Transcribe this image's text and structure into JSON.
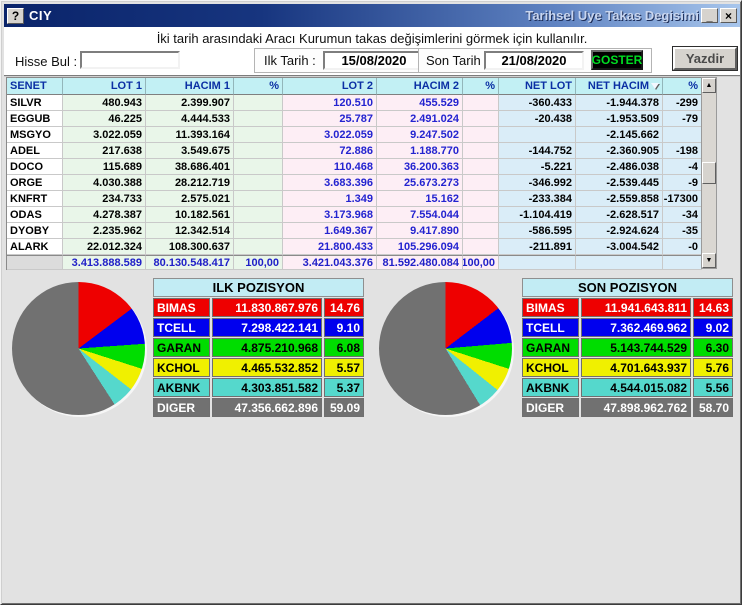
{
  "window": {
    "help_icon": "?",
    "title_left": "CIY",
    "title_right": "Tarihsel Uye Takas Degisimi",
    "minimize_icon": "_",
    "close_icon": "×"
  },
  "subtitle": "İki tarih arasındaki  Aracı Kurumun takas değişimlerini görmek için kullanılır.",
  "controls": {
    "hisse_bul_label": "Hisse Bul :",
    "hisse_bul_value": "",
    "ilk_tarih_label": "Ilk Tarih :",
    "ilk_tarih_value": "15/08/2020",
    "son_tarih_label": "Son Tarih :",
    "son_tarih_value": "21/08/2020",
    "goster_label": "GOSTER",
    "yazdir_label": "Yazdir"
  },
  "scrollbar": {
    "up_icon": "▲",
    "down_icon": "▼"
  },
  "table": {
    "headers": [
      "SENET",
      "LOT 1",
      "HACIM 1",
      "%",
      "LOT 2",
      "HACIM 2",
      "%",
      "NET LOT",
      "NET HACIM",
      "%"
    ],
    "rows": [
      [
        "SILVR",
        "480.943",
        "2.399.907",
        "",
        "120.510",
        "455.529",
        "",
        "-360.433",
        "-1.944.378",
        "-299"
      ],
      [
        "EGGUB",
        "46.225",
        "4.444.533",
        "",
        "25.787",
        "2.491.024",
        "",
        "-20.438",
        "-1.953.509",
        "-79"
      ],
      [
        "MSGYO",
        "3.022.059",
        "11.393.164",
        "",
        "3.022.059",
        "9.247.502",
        "",
        "",
        "-2.145.662",
        ""
      ],
      [
        "ADEL",
        "217.638",
        "3.549.675",
        "",
        "72.886",
        "1.188.770",
        "",
        "-144.752",
        "-2.360.905",
        "-198"
      ],
      [
        "DOCO",
        "115.689",
        "38.686.401",
        "",
        "110.468",
        "36.200.363",
        "",
        "-5.221",
        "-2.486.038",
        "-4"
      ],
      [
        "ORGE",
        "4.030.388",
        "28.212.719",
        "",
        "3.683.396",
        "25.673.273",
        "",
        "-346.992",
        "-2.539.445",
        "-9"
      ],
      [
        "KNFRT",
        "234.733",
        "2.575.021",
        "",
        "1.349",
        "15.162",
        "",
        "-233.384",
        "-2.559.858",
        "-17300"
      ],
      [
        "ODAS",
        "4.278.387",
        "10.182.561",
        "",
        "3.173.968",
        "7.554.044",
        "",
        "-1.104.419",
        "-2.628.517",
        "-34"
      ],
      [
        "DYOBY",
        "2.235.962",
        "12.342.514",
        "",
        "1.649.367",
        "9.417.890",
        "",
        "-586.595",
        "-2.924.624",
        "-35"
      ],
      [
        "ALARK",
        "22.012.324",
        "108.300.637",
        "",
        "21.800.433",
        "105.296.094",
        "",
        "-211.891",
        "-3.004.542",
        "-0"
      ]
    ],
    "totals": [
      "",
      "3.413.888.589",
      "80.130.548.417",
      "100,00",
      "3.421.043.376",
      "81.592.480.084",
      "100,00",
      "",
      "",
      ""
    ]
  },
  "positions": {
    "ilk": {
      "title": "ILK POZISYON",
      "rows": [
        {
          "code": "BIMAS",
          "value": "11.830.867.976",
          "pct": "14.76",
          "color": "#ee0000",
          "text": "#ffffff"
        },
        {
          "code": "TCELL",
          "value": "7.298.422.141",
          "pct": "9.10",
          "color": "#0000ee",
          "text": "#ffffff"
        },
        {
          "code": "GARAN",
          "value": "4.875.210.968",
          "pct": "6.08",
          "color": "#00dd00",
          "text": "#000000"
        },
        {
          "code": "KCHOL",
          "value": "4.465.532.852",
          "pct": "5.57",
          "color": "#f0f000",
          "text": "#000000"
        },
        {
          "code": "AKBNK",
          "value": "4.303.851.582",
          "pct": "5.37",
          "color": "#55d8cc",
          "text": "#000000"
        },
        {
          "code": "DIGER",
          "value": "47.356.662.896",
          "pct": "59.09",
          "color": "#717171",
          "text": "#ffffff"
        }
      ]
    },
    "son": {
      "title": "SON POZISYON",
      "rows": [
        {
          "code": "BIMAS",
          "value": "11.941.643.811",
          "pct": "14.63",
          "color": "#ee0000",
          "text": "#ffffff"
        },
        {
          "code": "TCELL",
          "value": "7.362.469.962",
          "pct": "9.02",
          "color": "#0000ee",
          "text": "#ffffff"
        },
        {
          "code": "GARAN",
          "value": "5.143.744.529",
          "pct": "6.30",
          "color": "#00dd00",
          "text": "#000000"
        },
        {
          "code": "KCHOL",
          "value": "4.701.643.937",
          "pct": "5.76",
          "color": "#f0f000",
          "text": "#000000"
        },
        {
          "code": "AKBNK",
          "value": "4.544.015.082",
          "pct": "5.56",
          "color": "#55d8cc",
          "text": "#000000"
        },
        {
          "code": "DIGER",
          "value": "47.898.962.762",
          "pct": "58.70",
          "color": "#717171",
          "text": "#ffffff"
        }
      ]
    }
  },
  "chart_data": [
    {
      "type": "pie",
      "title": "ILK POZISYON",
      "labels": [
        "BIMAS",
        "TCELL",
        "GARAN",
        "KCHOL",
        "AKBNK",
        "DIGER"
      ],
      "values": [
        14.76,
        9.1,
        6.08,
        5.57,
        5.37,
        59.09
      ],
      "amounts": [
        "11.830.867.976",
        "7.298.422.141",
        "4.875.210.968",
        "4.465.532.852",
        "4.303.851.582",
        "47.356.662.896"
      ],
      "colors": [
        "#ee0000",
        "#0000ee",
        "#00dd00",
        "#f0f000",
        "#55d8cc",
        "#717171"
      ],
      "legend_position": "right"
    },
    {
      "type": "pie",
      "title": "SON POZISYON",
      "labels": [
        "BIMAS",
        "TCELL",
        "GARAN",
        "KCHOL",
        "AKBNK",
        "DIGER"
      ],
      "values": [
        14.63,
        9.02,
        6.3,
        5.76,
        5.56,
        58.7
      ],
      "amounts": [
        "11.941.643.811",
        "7.362.469.962",
        "5.143.744.529",
        "4.701.643.937",
        "4.544.015.082",
        "47.898.962.762"
      ],
      "colors": [
        "#ee0000",
        "#0000ee",
        "#00dd00",
        "#f0f000",
        "#55d8cc",
        "#717171"
      ],
      "legend_position": "right"
    }
  ]
}
